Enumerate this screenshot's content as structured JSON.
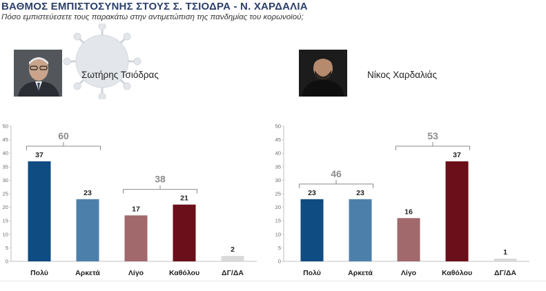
{
  "header": {
    "title": "ΒΑΘΜΟΣ ΕΜΠΙΣΤΟΣΥΝΗΣ ΣΤΟΥΣ Σ. ΤΣΙΟΔΡΑ - Ν. ΧΑΡΔΑΛΙΑ",
    "subtitle": "Πόσο εμπιστεύεσετε τους παρακάτω στην αντιμετώπιση της πανδημίας του κορωνοϊού;"
  },
  "people": {
    "left": {
      "name": "Σωτήρης Τσιόδρας"
    },
    "right": {
      "name": "Νίκος Χαρδαλιάς"
    }
  },
  "colors": {
    "bars": [
      "#0f4c81",
      "#4d7fab",
      "#a1696c",
      "#6b0f1a",
      "#d9d9d9"
    ],
    "bracket": "#8a8a8a",
    "axis": "#bfbfbf"
  },
  "chart_data": [
    {
      "type": "bar",
      "categories": [
        "Πολύ",
        "Αρκετά",
        "Λίγο",
        "Καθόλου",
        "ΔΓ/ΔΑ"
      ],
      "values": [
        37,
        23,
        17,
        21,
        2
      ],
      "ylim": [
        0,
        50
      ],
      "yticks": [
        0,
        5,
        10,
        15,
        20,
        25,
        30,
        35,
        40,
        45,
        50
      ],
      "grid": false,
      "annotations": [
        {
          "label": "60",
          "from": 0,
          "to": 1
        },
        {
          "label": "38",
          "from": 2,
          "to": 3
        }
      ]
    },
    {
      "type": "bar",
      "categories": [
        "Πολύ",
        "Αρκετά",
        "Λίγο",
        "Καθόλου",
        "ΔΓ/ΔΑ"
      ],
      "values": [
        23,
        23,
        16,
        37,
        1
      ],
      "ylim": [
        0,
        50
      ],
      "yticks": [
        0,
        5,
        10,
        15,
        20,
        25,
        30,
        35,
        40,
        45,
        50
      ],
      "grid": false,
      "annotations": [
        {
          "label": "46",
          "from": 0,
          "to": 1
        },
        {
          "label": "53",
          "from": 2,
          "to": 3
        }
      ]
    }
  ]
}
